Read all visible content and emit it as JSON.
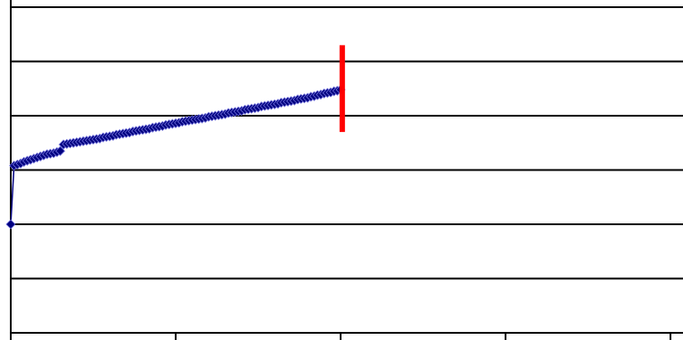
{
  "chart_data": {
    "type": "line",
    "title": "",
    "xlabel": "",
    "ylabel": "",
    "xlim": [
      0,
      200
    ],
    "ylim": [
      0,
      6
    ],
    "x_ticks": [
      0,
      50,
      100,
      150,
      200
    ],
    "y_gridlines": [
      1,
      2,
      3,
      4,
      5,
      6
    ],
    "grid": true,
    "legend": "none",
    "series": [
      {
        "x": [
          0,
          1,
          2,
          3,
          4,
          5,
          6,
          7,
          8,
          9,
          10,
          11,
          12,
          13,
          14,
          15,
          16,
          17,
          18,
          19,
          20,
          21,
          22,
          23,
          24,
          25,
          26,
          27,
          28,
          29,
          30,
          31,
          32,
          33,
          34,
          35,
          36,
          37,
          38,
          39,
          40,
          41,
          42,
          43,
          44,
          45,
          46,
          47,
          48,
          49,
          50,
          51,
          52,
          53,
          54,
          55,
          56,
          57,
          58,
          59,
          60,
          61,
          62,
          63,
          64,
          65,
          66,
          67,
          68,
          69,
          70,
          71,
          72,
          73,
          74,
          75,
          76,
          77,
          78,
          79,
          80,
          81,
          82,
          83,
          84,
          85,
          86,
          87,
          88,
          89,
          90,
          91,
          92,
          93,
          94,
          95,
          96,
          97,
          98,
          99,
          100
        ],
        "y": [
          2.0,
          3.08,
          3.1,
          3.12,
          3.15,
          3.17,
          3.19,
          3.21,
          3.23,
          3.25,
          3.27,
          3.29,
          3.3,
          3.31,
          3.33,
          3.35,
          3.47,
          3.48,
          3.49,
          3.5,
          3.51,
          3.52,
          3.53,
          3.54,
          3.55,
          3.56,
          3.57,
          3.58,
          3.6,
          3.61,
          3.62,
          3.63,
          3.65,
          3.66,
          3.67,
          3.68,
          3.69,
          3.71,
          3.72,
          3.73,
          3.74,
          3.75,
          3.76,
          3.78,
          3.79,
          3.8,
          3.81,
          3.83,
          3.84,
          3.85,
          3.86,
          3.87,
          3.89,
          3.9,
          3.91,
          3.92,
          3.93,
          3.94,
          3.95,
          3.96,
          3.98,
          3.99,
          4.0,
          4.01,
          4.02,
          4.03,
          4.05,
          4.06,
          4.07,
          4.08,
          4.09,
          4.11,
          4.12,
          4.13,
          4.14,
          4.15,
          4.17,
          4.18,
          4.19,
          4.2,
          4.21,
          4.22,
          4.24,
          4.25,
          4.26,
          4.27,
          4.28,
          4.3,
          4.31,
          4.32,
          4.33,
          4.35,
          4.36,
          4.38,
          4.39,
          4.41,
          4.42,
          4.43,
          4.45,
          4.46,
          4.48
        ],
        "color": "#000080"
      }
    ],
    "vertical_marker": {
      "x": 100.5,
      "y_range": [
        3.7,
        5.3
      ],
      "color": "#ff0000"
    }
  }
}
